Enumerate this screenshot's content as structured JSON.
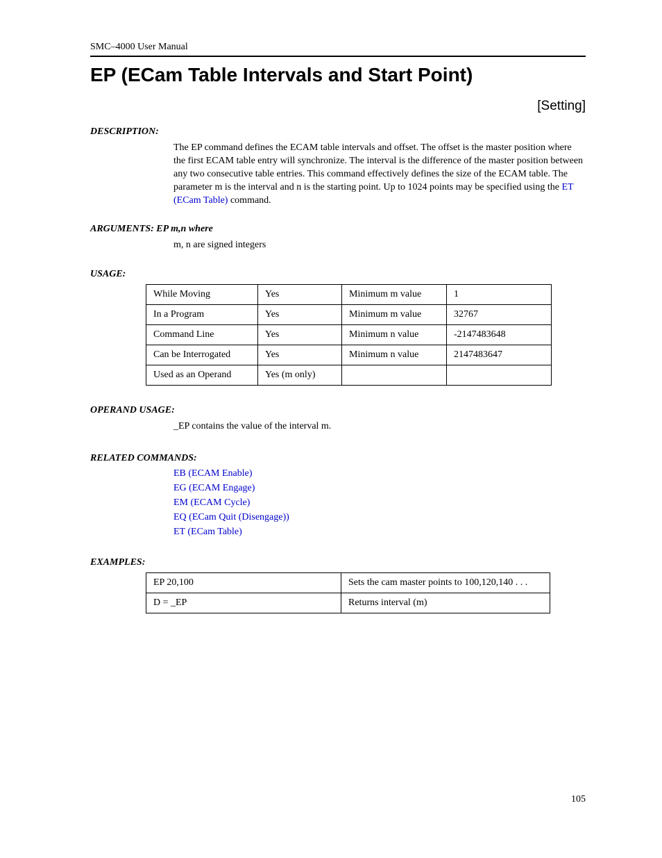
{
  "header": {
    "manual": "SMC–4000 User Manual"
  },
  "title": "EP (ECam Table Intervals and Start Point)",
  "setting": "[Setting]",
  "sections": {
    "description_label": "DESCRIPTION:",
    "description_pre": "The EP command defines the ECAM table intervals and offset. The offset is the master position where the first ECAM table entry will synchronize. The interval is the difference of the master position between any two consecutive table entries. This command effectively defines the size of the ECAM table. The parameter m is the interval and n is the starting point. Up to 1024 points may be specified using the ",
    "description_link": "ET (ECam Table)",
    "description_post": " command.",
    "arguments_label": "ARGUMENTS:  EP  m,n      where",
    "arguments_text": "m, n are signed integers",
    "usage_label": "USAGE:",
    "operand_label": "OPERAND USAGE:",
    "operand_text": "_EP contains the value of the interval m.",
    "related_label": "RELATED COMMANDS:",
    "examples_label": "EXAMPLES:"
  },
  "usage_table": {
    "rows": [
      [
        "While Moving",
        "Yes",
        "Minimum m value",
        "1"
      ],
      [
        "In a Program",
        "Yes",
        "Minimum m value",
        "32767"
      ],
      [
        "Command Line",
        "Yes",
        "Minimum n value",
        "-2147483648"
      ],
      [
        "Can be Interrogated",
        "Yes",
        "Minimum n value",
        "2147483647"
      ],
      [
        "Used as an Operand",
        "Yes (m only)",
        "",
        ""
      ]
    ]
  },
  "related": [
    "EB (ECAM Enable)",
    "EG (ECAM Engage)",
    "EM (ECAM Cycle)",
    "EQ (ECam Quit (Disengage))",
    "ET (ECam Table)"
  ],
  "examples_table": {
    "rows": [
      [
        "EP 20,100",
        "Sets the cam master points to 100,120,140 . . ."
      ],
      [
        "D = _EP",
        "Returns interval (m)"
      ]
    ]
  },
  "page_number": "105",
  "colors": {
    "link": "#0000cc",
    "text": "#000000",
    "background": "#ffffff"
  }
}
